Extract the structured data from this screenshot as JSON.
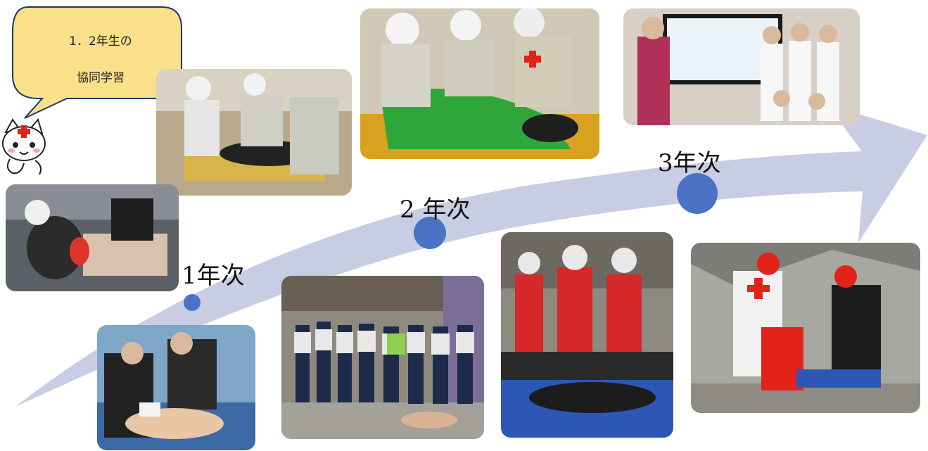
{
  "speech_bubble": {
    "line1": "1．2年生の",
    "line2": "協同学習"
  },
  "timeline": {
    "year1": "1年次",
    "year2": "2 年次",
    "year3": "3年次"
  },
  "colors": {
    "arrow": "#c9cde4",
    "dot": "#4a73c5",
    "bubble_fill": "#fbe08a",
    "bubble_stroke": "#1f3864"
  },
  "icons": {
    "mascot": "cat-mascot-icon"
  }
}
